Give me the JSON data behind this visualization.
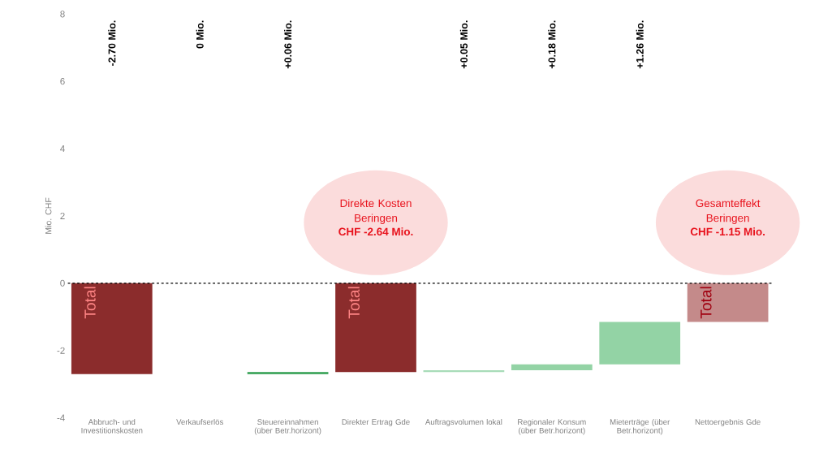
{
  "chart_data": {
    "type": "bar",
    "ylabel": "Mio. CHF",
    "categories": [
      "Abbruch- und Investitionskosten",
      "Verkaufserlös",
      "Steuereinnahmen (über Betr.horizont)",
      "Direkter Ertrag Gde",
      "Auftragsvolumen lokal",
      "Regionaler Konsum (über Betr.horizont)",
      "Mieterträge (über Betr.horizont)",
      "Nettoergebnis Gde"
    ],
    "values": [
      -2.7,
      0,
      0.06,
      -2.64,
      0.05,
      0.18,
      1.26,
      -1.15
    ],
    "base": [
      0,
      null,
      -2.7,
      0,
      -2.64,
      -2.59,
      -2.41,
      0
    ],
    "colors": [
      "#8b2c2c",
      "#2e9e4e",
      "#2e9e4e",
      "#8b2c2c",
      "#a8dcb8",
      "#93d3a5",
      "#93d3a5",
      "#c48a8a"
    ],
    "ylim": [
      -4,
      8
    ],
    "yticks": [
      -4,
      -2,
      0,
      2,
      4,
      6,
      8
    ],
    "ref_lines": [
      {
        "axis": "y",
        "value": 0,
        "color": "#000000",
        "line_style": "dashed"
      }
    ],
    "annotations": [
      "-2.70 Mio.",
      "0 Mio.",
      "+0.06 Mio.",
      "+0.05 Mio.",
      "+0.18 Mio.",
      "+1.26 Mio.",
      "Total",
      "Total",
      "Total",
      "Direkte Kosten Beringen",
      "CHF -2.64 Mio.",
      "Gesamteffekt Beringen",
      "CHF -1.15 Mio."
    ],
    "grid": false
  }
}
